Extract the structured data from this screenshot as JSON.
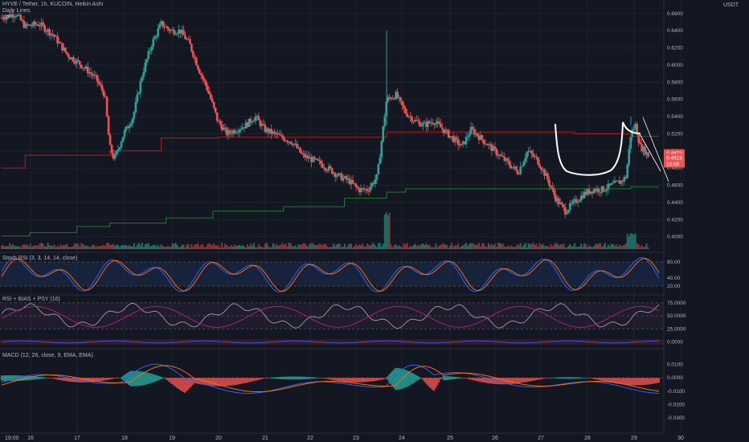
{
  "header": {
    "title": "HYVE / Tether, 1h, KUCOIN, Heikin Ashi",
    "line2": "Daily Lines",
    "line3": "Vol",
    "currency": "USDT"
  },
  "price_badges": {
    "a": "0.4972",
    "b": "0.4919",
    "c": "15:00"
  },
  "indicators": {
    "stoch": "Stoch RSI (3, 3, 14, 14, close)",
    "rsi": "RSI + BIAS + PSY (16)",
    "macd": "MACD (12, 26, close, 9, EMA, EMA)"
  },
  "x_labels": [
    "19:00",
    "16",
    "17",
    "18",
    "19",
    "20",
    "21",
    "22",
    "23",
    "24",
    "25",
    "26",
    "27",
    "28",
    "29",
    "30"
  ],
  "colors": {
    "up": "#26a69a",
    "down": "#ef5350",
    "bg": "#131722",
    "grid": "#1e222d"
  },
  "chart_data": [
    {
      "type": "candlestick",
      "title": "HYVE / Tether, 1h, KUCOIN, Heikin Ashi",
      "y_ticks": [
        "0.6600",
        "0.6400",
        "0.6200",
        "0.6000",
        "0.5800",
        "0.5600",
        "0.5400",
        "0.5200",
        "0.5000",
        "0.4800",
        "0.4600",
        "0.4400",
        "0.4200",
        "0.4000"
      ],
      "ylim": [
        0.395,
        0.672
      ],
      "x_ticks": [
        "16",
        "17",
        "18",
        "19",
        "20",
        "21",
        "22",
        "23",
        "24",
        "25",
        "26",
        "27",
        "28",
        "29",
        "30"
      ],
      "price_path": [
        [
          0,
          0.655
        ],
        [
          3,
          0.66
        ],
        [
          5,
          0.645
        ],
        [
          8,
          0.648
        ],
        [
          11,
          0.635
        ],
        [
          14,
          0.612
        ],
        [
          17,
          0.6
        ],
        [
          20,
          0.585
        ],
        [
          22,
          0.565
        ],
        [
          23,
          0.505
        ],
        [
          24,
          0.49
        ],
        [
          26,
          0.52
        ],
        [
          28,
          0.54
        ],
        [
          30,
          0.59
        ],
        [
          32,
          0.625
        ],
        [
          34,
          0.648
        ],
        [
          36,
          0.64
        ],
        [
          38,
          0.64
        ],
        [
          40,
          0.625
        ],
        [
          42,
          0.595
        ],
        [
          44,
          0.57
        ],
        [
          46,
          0.535
        ],
        [
          48,
          0.52
        ],
        [
          50,
          0.525
        ],
        [
          52,
          0.53
        ],
        [
          54,
          0.54
        ],
        [
          56,
          0.525
        ],
        [
          58,
          0.52
        ],
        [
          60,
          0.515
        ],
        [
          62,
          0.51
        ],
        [
          64,
          0.495
        ],
        [
          66,
          0.49
        ],
        [
          68,
          0.485
        ],
        [
          70,
          0.478
        ],
        [
          72,
          0.47
        ],
        [
          74,
          0.465
        ],
        [
          76,
          0.455
        ],
        [
          78,
          0.455
        ],
        [
          80,
          0.47
        ],
        [
          82,
          0.56
        ],
        [
          84,
          0.565
        ],
        [
          86,
          0.545
        ],
        [
          88,
          0.535
        ],
        [
          90,
          0.53
        ],
        [
          92,
          0.535
        ],
        [
          94,
          0.525
        ],
        [
          96,
          0.515
        ],
        [
          98,
          0.505
        ],
        [
          100,
          0.525
        ],
        [
          102,
          0.515
        ],
        [
          104,
          0.505
        ],
        [
          106,
          0.495
        ],
        [
          108,
          0.485
        ],
        [
          110,
          0.475
        ],
        [
          112,
          0.5
        ],
        [
          114,
          0.49
        ],
        [
          116,
          0.47
        ],
        [
          118,
          0.445
        ],
        [
          120,
          0.43
        ],
        [
          122,
          0.44
        ],
        [
          124,
          0.45
        ],
        [
          126,
          0.455
        ],
        [
          128,
          0.455
        ],
        [
          130,
          0.46
        ],
        [
          132,
          0.465
        ],
        [
          133,
          0.47
        ],
        [
          134,
          0.52
        ],
        [
          135,
          0.53
        ],
        [
          136,
          0.505
        ],
        [
          137,
          0.5
        ],
        [
          138,
          0.492
        ]
      ],
      "support_lines": [
        {
          "name": "red",
          "steps": [
            [
              0,
              0.48
            ],
            [
              5,
              0.495
            ],
            [
              23,
              0.5
            ],
            [
              34,
              0.515
            ],
            [
              46,
              0.516
            ],
            [
              82,
              0.522
            ],
            [
              122,
              0.52
            ],
            [
              134,
              0.517
            ]
          ]
        },
        {
          "name": "green",
          "steps": [
            [
              0,
              0.401
            ],
            [
              6,
              0.405
            ],
            [
              16,
              0.412
            ],
            [
              23,
              0.416
            ],
            [
              35,
              0.422
            ],
            [
              45,
              0.43
            ],
            [
              60,
              0.435
            ],
            [
              73,
              0.445
            ],
            [
              82,
              0.452
            ],
            [
              86,
              0.456
            ],
            [
              134,
              0.458
            ],
            [
              138,
              0.458
            ]
          ]
        }
      ],
      "x_count": 140
    },
    {
      "type": "line",
      "title": "Stoch RSI (3, 3, 14, 14, close)",
      "y_ticks": [
        "80.00",
        "40.00",
        "20.00"
      ],
      "ylim": [
        0,
        100
      ],
      "band": [
        20,
        80
      ]
    },
    {
      "type": "line",
      "title": "RSI + BIAS + PSY (16)",
      "y_ticks": [
        "75.0000",
        "50.0000",
        "25.0000",
        "0.0000"
      ],
      "ylim": [
        -10,
        90
      ]
    },
    {
      "type": "line",
      "title": "MACD (12, 26, close, 9, EMA, EMA)",
      "y_ticks": [
        "0.0100",
        "0.0000",
        "-0.0100",
        "-0.0200",
        "-0.0300"
      ],
      "ylim": [
        -0.036,
        0.02
      ]
    }
  ]
}
